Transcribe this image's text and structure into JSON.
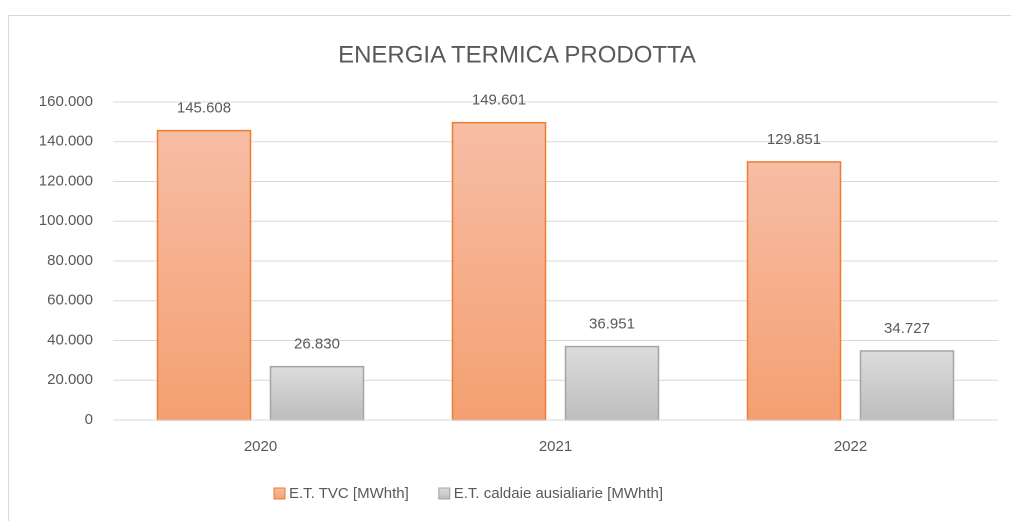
{
  "chart_data": {
    "type": "bar",
    "title": "ENERGIA TERMICA PRODOTTA",
    "categories": [
      "2020",
      "2021",
      "2022"
    ],
    "series": [
      {
        "name": "E.T. TVC [MWhth]",
        "color": "#ed7d31",
        "values": [
          145608,
          149601,
          129851
        ],
        "value_labels": [
          "145.608",
          "149.601",
          "129.851"
        ]
      },
      {
        "name": "E.T. caldaie ausialiarie [MWhth]",
        "color": "#a5a5a5",
        "values": [
          26830,
          36951,
          34727
        ],
        "value_labels": [
          "26.830",
          "36.951",
          "34.727"
        ]
      }
    ],
    "ylim": [
      0,
      160000
    ],
    "yticks": [
      0,
      {
        "value": 20000,
        "label": "20.000"
      },
      {
        "value": 40000,
        "label": "40.000"
      },
      {
        "value": 60000,
        "label": "60.000"
      },
      {
        "value": 80000,
        "label": "80.000"
      },
      {
        "value": 100000,
        "label": "100.000"
      },
      {
        "value": 120000,
        "label": "120.000"
      },
      {
        "value": 140000,
        "label": "140.000"
      },
      {
        "value": 160000,
        "label": "160.000"
      }
    ],
    "grid": true,
    "legend": "bottom"
  }
}
